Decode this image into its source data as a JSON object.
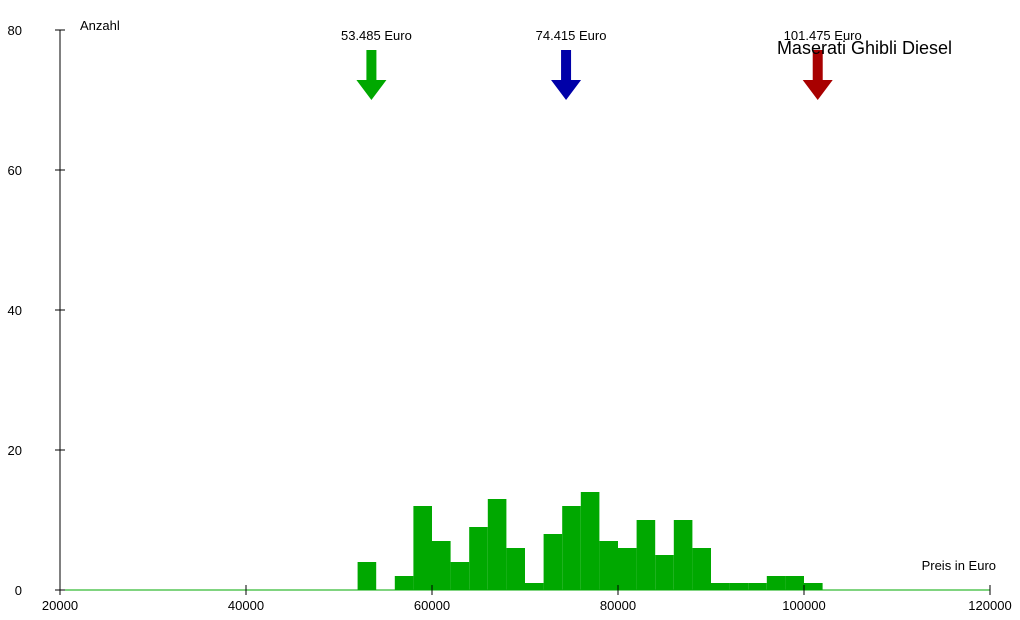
{
  "chart_data": {
    "type": "bar",
    "title": "Maserati Ghibli Diesel",
    "xlabel": "Preis in Euro",
    "ylabel": "Anzahl",
    "xlim": [
      20000,
      120000
    ],
    "ylim": [
      0,
      80
    ],
    "xticks": [
      20000,
      40000,
      60000,
      80000,
      100000,
      120000
    ],
    "yticks": [
      0,
      20,
      40,
      60,
      80
    ],
    "xtick_labels": [
      "20000",
      "40000",
      "60000",
      "80000",
      "100000",
      "120000"
    ],
    "ytick_labels": [
      "0",
      "20",
      "40",
      "60",
      "80"
    ],
    "bin_width": 2000,
    "bins": [
      {
        "x0": 52000,
        "value": 4
      },
      {
        "x0": 54000,
        "value": 0
      },
      {
        "x0": 56000,
        "value": 2
      },
      {
        "x0": 58000,
        "value": 12
      },
      {
        "x0": 60000,
        "value": 7
      },
      {
        "x0": 62000,
        "value": 4
      },
      {
        "x0": 64000,
        "value": 9
      },
      {
        "x0": 66000,
        "value": 13
      },
      {
        "x0": 68000,
        "value": 6
      },
      {
        "x0": 70000,
        "value": 1
      },
      {
        "x0": 72000,
        "value": 8
      },
      {
        "x0": 74000,
        "value": 12
      },
      {
        "x0": 76000,
        "value": 14
      },
      {
        "x0": 78000,
        "value": 7
      },
      {
        "x0": 80000,
        "value": 6
      },
      {
        "x0": 82000,
        "value": 10
      },
      {
        "x0": 84000,
        "value": 5
      },
      {
        "x0": 86000,
        "value": 10
      },
      {
        "x0": 88000,
        "value": 6
      },
      {
        "x0": 90000,
        "value": 1
      },
      {
        "x0": 92000,
        "value": 1
      },
      {
        "x0": 94000,
        "value": 1
      },
      {
        "x0": 96000,
        "value": 2
      },
      {
        "x0": 98000,
        "value": 2
      },
      {
        "x0": 100000,
        "value": 1
      }
    ],
    "markers": [
      {
        "x": 53485,
        "label": "53.485 Euro",
        "color": "#00a800"
      },
      {
        "x": 74415,
        "label": "74.415 Euro",
        "color": "#0000a8"
      },
      {
        "x": 101475,
        "label": "101.475 Euro",
        "color": "#a80000"
      }
    ],
    "bar_color": "#00a800",
    "axis_color": "#000000",
    "baseline_color": "#00a800",
    "grid": false,
    "legend": "none"
  }
}
